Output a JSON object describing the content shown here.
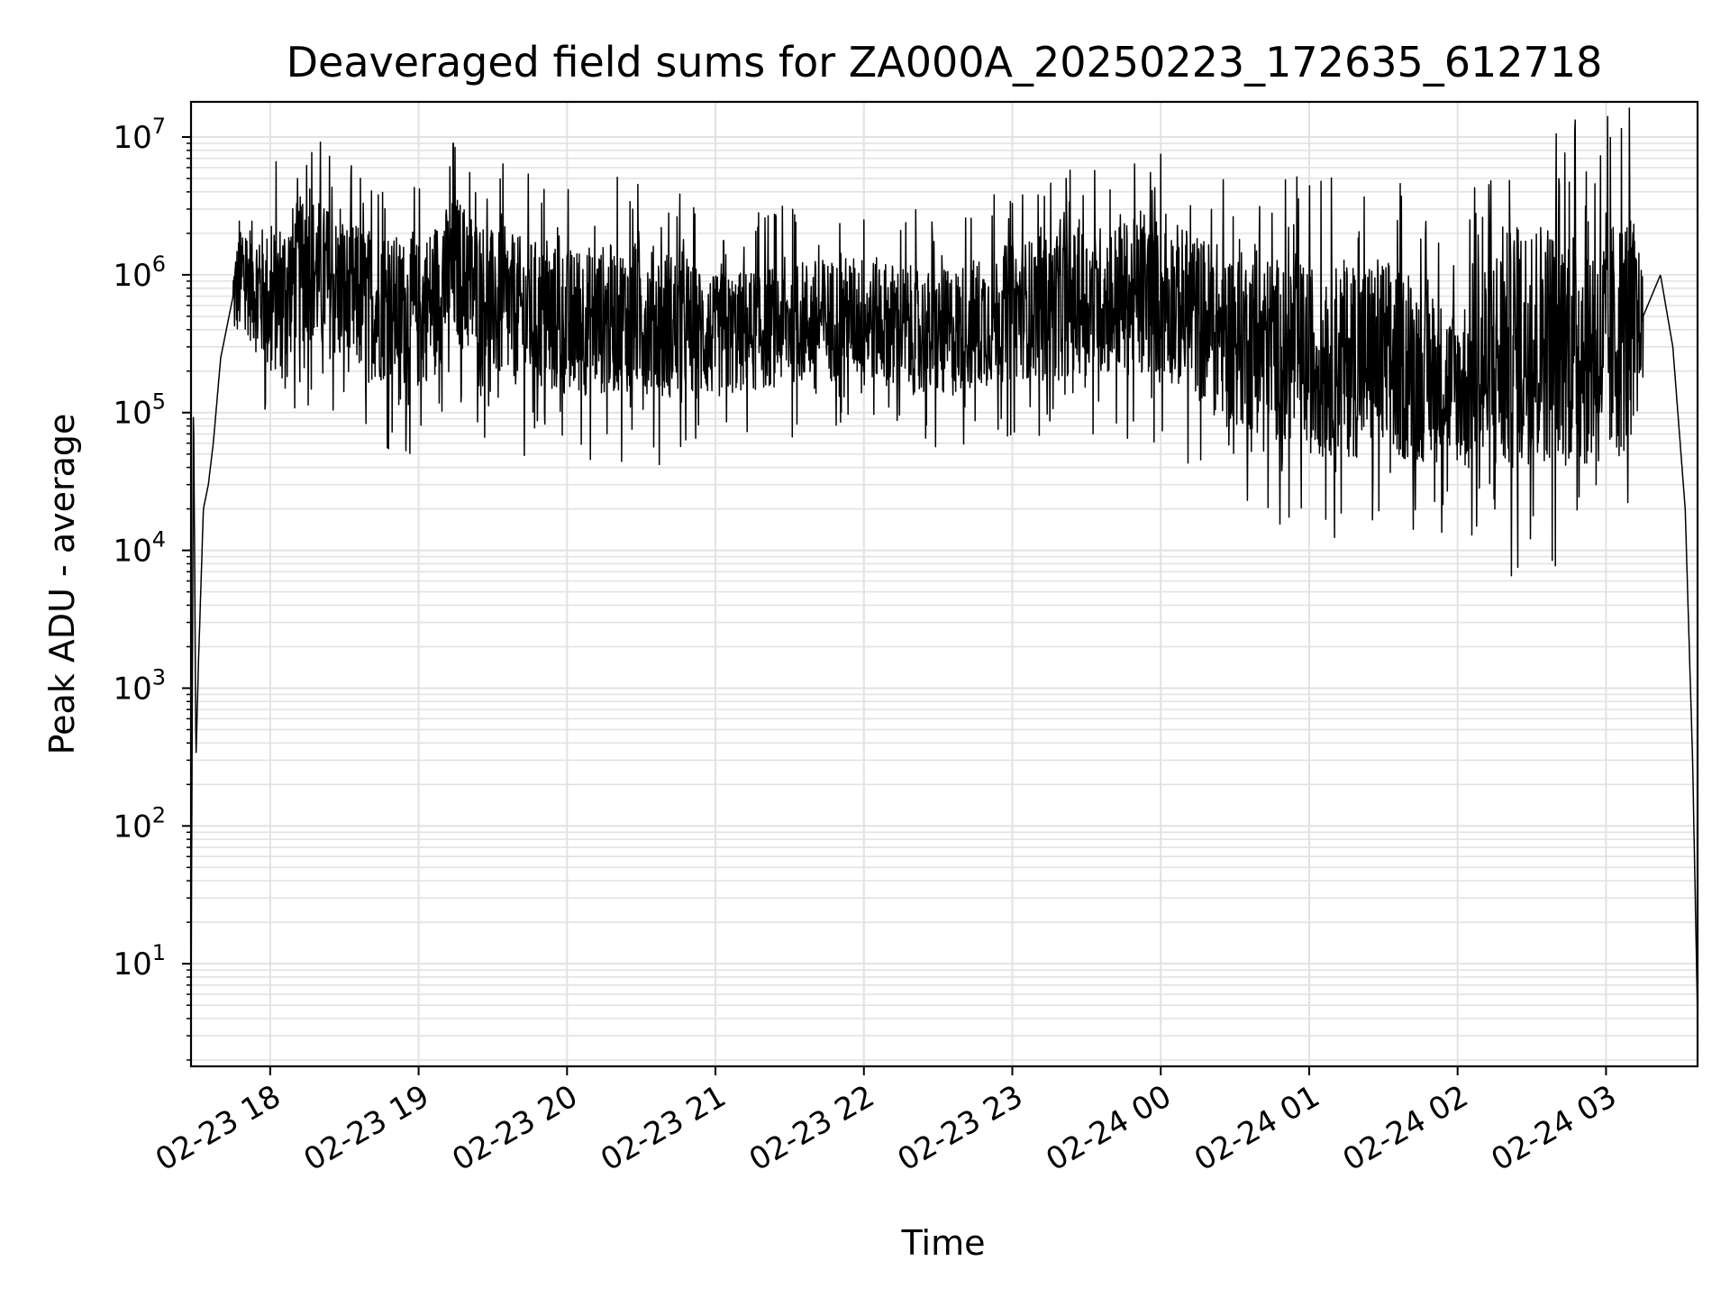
{
  "chart_data": {
    "type": "line",
    "title": "Deaveraged field sums for ZA000A_20250223_172635_612718",
    "xlabel": "Time",
    "ylabel": "Peak ADU - average",
    "yscale": "log",
    "xlim": [
      "02-23 17:28",
      "02-24 03:37"
    ],
    "ylim": [
      1.8,
      18000000
    ],
    "grid": true,
    "x_ticks": [
      "02-23 18",
      "02-23 19",
      "02-23 20",
      "02-23 21",
      "02-23 22",
      "02-23 23",
      "02-24 00",
      "02-24 01",
      "02-24 02",
      "02-24 03"
    ],
    "y_ticks": [
      {
        "value": 10,
        "exp": "1"
      },
      {
        "value": 100,
        "exp": "2"
      },
      {
        "value": 1000,
        "exp": "3"
      },
      {
        "value": 10000,
        "exp": "4"
      },
      {
        "value": 100000,
        "exp": "5"
      },
      {
        "value": 1000000,
        "exp": "6"
      },
      {
        "value": 10000000,
        "exp": "7"
      }
    ],
    "series": [
      {
        "color": "#000000",
        "points": [
          [
            "02-23 17:28",
            4
          ],
          [
            "02-23 17:29",
            140000
          ],
          [
            "02-23 17:30",
            300
          ],
          [
            "02-23 17:31",
            1500
          ],
          [
            "02-23 17:33",
            20000
          ],
          [
            "02-23 17:35",
            30000
          ],
          [
            "02-23 17:37",
            60000
          ],
          [
            "02-23 17:40",
            250000
          ],
          [
            "02-23 17:45",
            700000
          ],
          [
            "02-23 17:50",
            1000000
          ],
          [
            "02-23 18:00",
            600000
          ],
          [
            "02-23 18:15",
            1200000
          ],
          [
            "02-23 18:30",
            700000
          ],
          [
            "02-23 19:00",
            500000
          ],
          [
            "02-23 19:15",
            1100000
          ],
          [
            "02-23 19:30",
            600000
          ],
          [
            "02-23 20:00",
            450000
          ],
          [
            "02-23 20:30",
            500000
          ],
          [
            "02-23 21:00",
            350000
          ],
          [
            "02-23 21:30",
            450000
          ],
          [
            "02-23 22:00",
            500000
          ],
          [
            "02-23 22:30",
            350000
          ],
          [
            "02-23 23:00",
            550000
          ],
          [
            "02-23 23:30",
            650000
          ],
          [
            "02-24 00:00",
            700000
          ],
          [
            "02-24 00:30",
            350000
          ],
          [
            "02-24 01:00",
            250000
          ],
          [
            "02-24 01:30",
            250000
          ],
          [
            "02-24 02:00",
            150000
          ],
          [
            "02-24 02:30",
            350000
          ],
          [
            "02-24 03:00",
            300000
          ],
          [
            "02-24 03:15",
            500000
          ],
          [
            "02-24 03:22",
            1000000
          ],
          [
            "02-24 03:27",
            300000
          ],
          [
            "02-24 03:32",
            20000
          ],
          [
            "02-24 03:35",
            300
          ],
          [
            "02-24 03:37",
            4
          ]
        ],
        "spikes": [
          [
            "02-23 18:11",
            5000000
          ],
          [
            "02-23 18:16",
            4200000
          ],
          [
            "02-23 19:14",
            9000000
          ],
          [
            "02-23 22:00",
            2500000
          ],
          [
            "02-23 23:00",
            3300000
          ],
          [
            "02-24 00:00",
            7500000
          ],
          [
            "02-24 00:45",
            2800000
          ],
          [
            "02-24 02:05",
            2500000
          ],
          [
            "02-24 03:00",
            2800000
          ]
        ],
        "noise_band": [
          [
            "02-23 17:45",
            0.35
          ],
          [
            "02-23 18:00",
            0.55
          ],
          [
            "02-23 19:00",
            0.55
          ],
          [
            "02-23 20:40",
            0.55
          ],
          [
            "02-23 21:00",
            0.45
          ],
          [
            "02-23 22:00",
            0.45
          ],
          [
            "02-23 23:00",
            0.5
          ],
          [
            "02-24 00:10",
            0.6
          ],
          [
            "02-24 01:30",
            0.75
          ],
          [
            "02-24 02:00",
            0.55
          ],
          [
            "02-24 02:10",
            0.9
          ],
          [
            "02-24 03:10",
            0.9
          ],
          [
            "02-24 03:15",
            0.3
          ]
        ]
      }
    ]
  }
}
